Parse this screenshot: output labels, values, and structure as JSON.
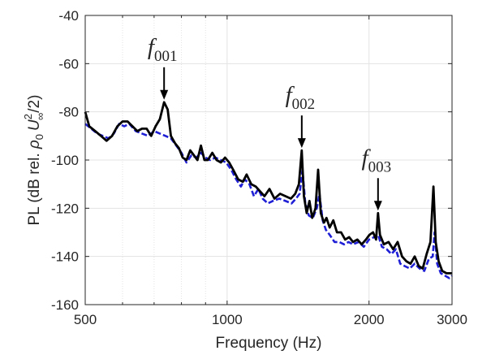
{
  "chart_data": {
    "type": "line",
    "xscale": "log",
    "xlim": [
      500,
      3000
    ],
    "ylim": [
      -160,
      -40
    ],
    "xticks": [
      500,
      1000,
      2000,
      3000
    ],
    "xtick_labels": [
      "500",
      "1000",
      "2000",
      "3000"
    ],
    "xticks_minor": [
      600,
      700,
      800,
      900
    ],
    "yticks": [
      -160,
      -140,
      -120,
      -100,
      -80,
      -60,
      -40
    ],
    "ytick_labels": [
      "-160",
      "-140",
      "-120",
      "-100",
      "-80",
      "-60",
      "-40"
    ],
    "xlabel": "Frequency (Hz)",
    "ylabel": {
      "prefix": "PL (dB rel. ",
      "rho": "ρ",
      "rho_sub": "0",
      "U": "U",
      "U_sup": "2",
      "U_sub": "∞",
      "suffix": "/2)"
    },
    "grid": true,
    "legend": "none",
    "colors": {
      "black_series": "#000000",
      "blue_series": "#1f1fd6",
      "axis": "#262626",
      "grid": "#e3e3e3"
    },
    "series": [
      {
        "style": "solid",
        "color": "#000000",
        "points": [
          [
            500,
            -80
          ],
          [
            510,
            -86
          ],
          [
            525,
            -88
          ],
          [
            540,
            -90
          ],
          [
            555,
            -92
          ],
          [
            570,
            -90
          ],
          [
            585,
            -86
          ],
          [
            600,
            -84
          ],
          [
            615,
            -84
          ],
          [
            630,
            -86
          ],
          [
            645,
            -88
          ],
          [
            660,
            -87
          ],
          [
            675,
            -87
          ],
          [
            690,
            -90
          ],
          [
            705,
            -86
          ],
          [
            720,
            -83
          ],
          [
            735,
            -76
          ],
          [
            748,
            -79
          ],
          [
            760,
            -90
          ],
          [
            775,
            -93
          ],
          [
            790,
            -95
          ],
          [
            805,
            -99
          ],
          [
            820,
            -100
          ],
          [
            835,
            -96
          ],
          [
            850,
            -98
          ],
          [
            865,
            -100
          ],
          [
            880,
            -94
          ],
          [
            895,
            -100
          ],
          [
            910,
            -100
          ],
          [
            930,
            -97
          ],
          [
            950,
            -100
          ],
          [
            970,
            -101
          ],
          [
            990,
            -99
          ],
          [
            1010,
            -101
          ],
          [
            1030,
            -104
          ],
          [
            1055,
            -108
          ],
          [
            1080,
            -109
          ],
          [
            1100,
            -106
          ],
          [
            1125,
            -110
          ],
          [
            1150,
            -111
          ],
          [
            1175,
            -113
          ],
          [
            1200,
            -115
          ],
          [
            1230,
            -112
          ],
          [
            1260,
            -116
          ],
          [
            1295,
            -114
          ],
          [
            1330,
            -115
          ],
          [
            1365,
            -116
          ],
          [
            1395,
            -114
          ],
          [
            1420,
            -110
          ],
          [
            1440,
            -96
          ],
          [
            1455,
            -115
          ],
          [
            1475,
            -122
          ],
          [
            1495,
            -117
          ],
          [
            1515,
            -124
          ],
          [
            1540,
            -120
          ],
          [
            1560,
            -104
          ],
          [
            1580,
            -122
          ],
          [
            1605,
            -126
          ],
          [
            1625,
            -124
          ],
          [
            1650,
            -128
          ],
          [
            1680,
            -125
          ],
          [
            1710,
            -130
          ],
          [
            1745,
            -130
          ],
          [
            1780,
            -133
          ],
          [
            1815,
            -132
          ],
          [
            1850,
            -134
          ],
          [
            1890,
            -133
          ],
          [
            1930,
            -135
          ],
          [
            1970,
            -133
          ],
          [
            2005,
            -131
          ],
          [
            2040,
            -130
          ],
          [
            2070,
            -133
          ],
          [
            2090,
            -122
          ],
          [
            2110,
            -131
          ],
          [
            2150,
            -135
          ],
          [
            2200,
            -134
          ],
          [
            2250,
            -137
          ],
          [
            2300,
            -134
          ],
          [
            2350,
            -140
          ],
          [
            2400,
            -142
          ],
          [
            2450,
            -143
          ],
          [
            2500,
            -140
          ],
          [
            2550,
            -144
          ],
          [
            2600,
            -145
          ],
          [
            2650,
            -139
          ],
          [
            2700,
            -134
          ],
          [
            2740,
            -111
          ],
          [
            2770,
            -134
          ],
          [
            2810,
            -142
          ],
          [
            2860,
            -146
          ],
          [
            2920,
            -147
          ],
          [
            3000,
            -147
          ]
        ]
      },
      {
        "style": "dashed",
        "color": "#1f1fd6",
        "points": [
          [
            500,
            -85
          ],
          [
            515,
            -87
          ],
          [
            530,
            -89
          ],
          [
            545,
            -90
          ],
          [
            560,
            -91
          ],
          [
            575,
            -89
          ],
          [
            590,
            -85
          ],
          [
            605,
            -86
          ],
          [
            620,
            -85
          ],
          [
            640,
            -88
          ],
          [
            660,
            -89
          ],
          [
            680,
            -90
          ],
          [
            700,
            -88
          ],
          [
            720,
            -89
          ],
          [
            740,
            -90
          ],
          [
            760,
            -91
          ],
          [
            780,
            -94
          ],
          [
            800,
            -97
          ],
          [
            820,
            -101
          ],
          [
            840,
            -98
          ],
          [
            860,
            -99
          ],
          [
            880,
            -97
          ],
          [
            900,
            -99
          ],
          [
            920,
            -100
          ],
          [
            945,
            -99
          ],
          [
            970,
            -100
          ],
          [
            995,
            -101
          ],
          [
            1020,
            -104
          ],
          [
            1045,
            -108
          ],
          [
            1070,
            -111
          ],
          [
            1090,
            -108
          ],
          [
            1115,
            -110
          ],
          [
            1140,
            -115
          ],
          [
            1165,
            -112
          ],
          [
            1190,
            -116
          ],
          [
            1220,
            -118
          ],
          [
            1250,
            -117
          ],
          [
            1290,
            -116
          ],
          [
            1330,
            -117
          ],
          [
            1370,
            -118
          ],
          [
            1400,
            -116
          ],
          [
            1425,
            -114
          ],
          [
            1445,
            -104
          ],
          [
            1465,
            -118
          ],
          [
            1490,
            -123
          ],
          [
            1520,
            -124
          ],
          [
            1550,
            -120
          ],
          [
            1570,
            -114
          ],
          [
            1595,
            -125
          ],
          [
            1620,
            -129
          ],
          [
            1650,
            -131
          ],
          [
            1690,
            -134
          ],
          [
            1730,
            -134
          ],
          [
            1770,
            -135
          ],
          [
            1810,
            -134
          ],
          [
            1850,
            -135
          ],
          [
            1900,
            -134
          ],
          [
            1950,
            -136
          ],
          [
            2000,
            -133
          ],
          [
            2050,
            -132
          ],
          [
            2090,
            -131
          ],
          [
            2130,
            -136
          ],
          [
            2180,
            -137
          ],
          [
            2230,
            -139
          ],
          [
            2280,
            -137
          ],
          [
            2330,
            -143
          ],
          [
            2380,
            -144
          ],
          [
            2440,
            -145
          ],
          [
            2500,
            -143
          ],
          [
            2560,
            -145
          ],
          [
            2620,
            -146
          ],
          [
            2680,
            -141
          ],
          [
            2730,
            -140
          ],
          [
            2755,
            -130
          ],
          [
            2790,
            -143
          ],
          [
            2840,
            -147
          ],
          [
            2900,
            -148
          ],
          [
            2960,
            -149
          ],
          [
            3000,
            -148
          ]
        ]
      }
    ],
    "annotations": [
      {
        "label": "f",
        "sub": "001",
        "x": 735,
        "y": -76
      },
      {
        "label": "f",
        "sub": "002",
        "x": 1440,
        "y": -96
      },
      {
        "label": "f",
        "sub": "003",
        "x": 2090,
        "y": -122
      }
    ]
  }
}
